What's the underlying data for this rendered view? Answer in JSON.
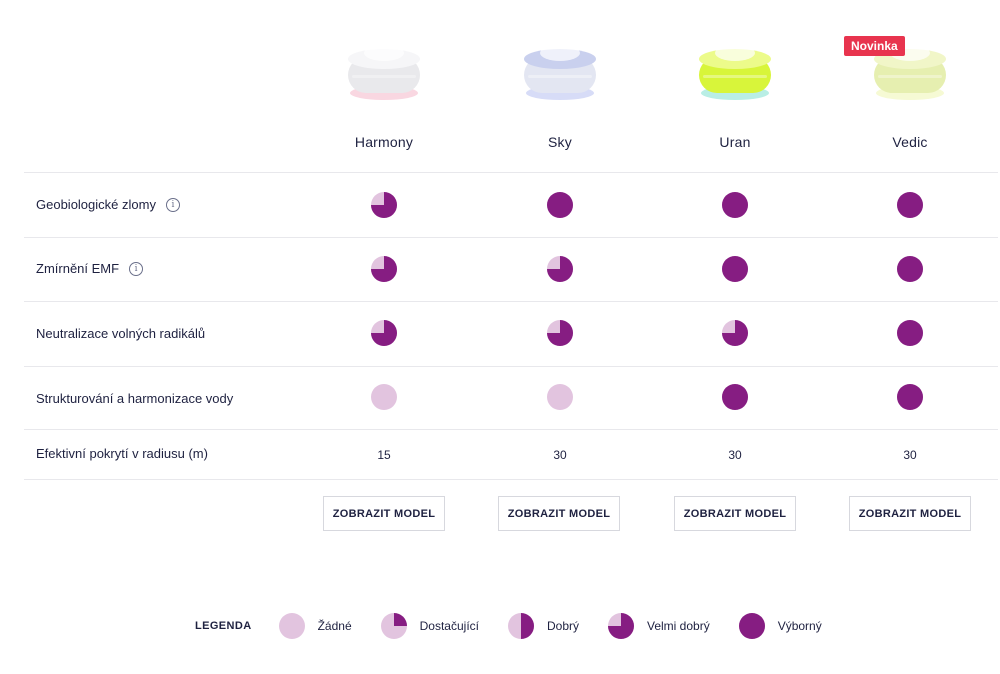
{
  "badge": "Novinka",
  "colors": {
    "filled": "#861d82",
    "empty": "#e2c4df",
    "badge": "#e8344e"
  },
  "products": [
    {
      "name": "Harmony",
      "glow": "#f4b6c8",
      "body": "#e9e9ec",
      "top": "#f6f6f8"
    },
    {
      "name": "Sky",
      "glow": "#b7c0f0",
      "body": "#e3e6f2",
      "top": "#c9d0ee"
    },
    {
      "name": "Uran",
      "glow": "#7fe0d0",
      "body": "#d8f53a",
      "top": "#ecfb8a"
    },
    {
      "name": "Vedic",
      "glow": "#eef6b0",
      "body": "#e6efb0",
      "top": "#f1f6c8"
    }
  ],
  "rows": [
    {
      "label": "Geobiologické zlomy",
      "info": true,
      "levels": [
        3,
        4,
        4,
        4
      ]
    },
    {
      "label": "Zmírnění EMF",
      "info": true,
      "levels": [
        3,
        3,
        4,
        4
      ]
    },
    {
      "label": "Neutralizace volných radikálů",
      "info": false,
      "levels": [
        3,
        3,
        3,
        4
      ]
    },
    {
      "label": "Strukturování a harmonizace vody",
      "info": false,
      "levels": [
        0,
        0,
        4,
        4
      ]
    }
  ],
  "coverage": {
    "label": "Efektivní pokrytí v radiusu (m)",
    "values": [
      "15",
      "30",
      "30",
      "30"
    ]
  },
  "button_label": "ZOBRAZIT MODEL",
  "legend": {
    "title": "LEGENDA",
    "items": [
      {
        "label": "Žádné",
        "level": 0
      },
      {
        "label": "Dostačující",
        "level": 1
      },
      {
        "label": "Dobrý",
        "level": 2
      },
      {
        "label": "Velmi dobrý",
        "level": 3
      },
      {
        "label": "Výborný",
        "level": 4
      }
    ]
  }
}
